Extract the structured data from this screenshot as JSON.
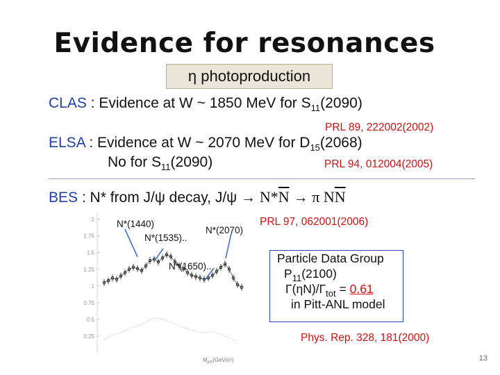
{
  "title": "Evidence for resonances",
  "subtitle": "η photoproduction",
  "clas": {
    "name": "CLAS",
    "text": " : Evidence at W ~ 1850 MeV for S",
    "sub": "11",
    "tail": "(2090)",
    "ref": "PRL 89, 222002(2002)"
  },
  "elsa": {
    "name": "ELSA",
    "text": " : Evidence at W ~ 2070 MeV for D",
    "sub": "15",
    "tail": "(2068)",
    "line2_text": "No for S",
    "line2_sub": "11",
    "line2_tail": "(2090)",
    "ref": "PRL 94, 012004(2005)"
  },
  "bes": {
    "name": "BES",
    "text": "  : N* from J/ψ decay, J/ψ ",
    "arrow1": "→",
    "nstar": "N*",
    "nbar": "N",
    "arrow2": "→",
    "pi": "π ",
    "nn_n": "N",
    "nn_nbar": "N",
    "ref": "PRL 97, 062001(2006)"
  },
  "plot": {
    "labels": [
      "N*(1440)",
      "N*(1535)..",
      "N*(2070)",
      "N*(1650).."
    ],
    "xlabel": "M",
    "xlabel_sub": "pπ",
    "xlabel_tail": "(GeV/c²)",
    "yticks": [
      "2",
      "1.75",
      "1.5",
      "1.25",
      "1",
      "0.75",
      "0.5",
      "0.25"
    ],
    "points": [
      [
        1.2,
        1.05
      ],
      [
        1.23,
        1.08
      ],
      [
        1.26,
        1.12
      ],
      [
        1.29,
        1.1
      ],
      [
        1.32,
        1.15
      ],
      [
        1.35,
        1.2
      ],
      [
        1.38,
        1.25
      ],
      [
        1.41,
        1.28
      ],
      [
        1.44,
        1.26
      ],
      [
        1.47,
        1.23
      ],
      [
        1.5,
        1.3
      ],
      [
        1.53,
        1.38
      ],
      [
        1.56,
        1.4
      ],
      [
        1.59,
        1.36
      ],
      [
        1.62,
        1.42
      ],
      [
        1.65,
        1.47
      ],
      [
        1.68,
        1.44
      ],
      [
        1.71,
        1.36
      ],
      [
        1.74,
        1.3
      ],
      [
        1.77,
        1.26
      ],
      [
        1.8,
        1.2
      ],
      [
        1.83,
        1.16
      ],
      [
        1.86,
        1.14
      ],
      [
        1.89,
        1.12
      ],
      [
        1.92,
        1.1
      ],
      [
        1.95,
        1.12
      ],
      [
        1.98,
        1.16
      ],
      [
        2.01,
        1.22
      ],
      [
        2.04,
        1.28
      ],
      [
        2.07,
        1.33
      ],
      [
        2.1,
        1.25
      ],
      [
        2.13,
        1.12
      ],
      [
        2.16,
        1.02
      ],
      [
        2.19,
        0.98
      ]
    ],
    "hist_low": [
      [
        1.2,
        0.2
      ],
      [
        1.26,
        0.26
      ],
      [
        1.32,
        0.3
      ],
      [
        1.38,
        0.36
      ],
      [
        1.44,
        0.4
      ],
      [
        1.5,
        0.46
      ],
      [
        1.56,
        0.52
      ],
      [
        1.62,
        0.5
      ],
      [
        1.68,
        0.46
      ],
      [
        1.74,
        0.4
      ],
      [
        1.8,
        0.36
      ],
      [
        1.86,
        0.32
      ],
      [
        1.92,
        0.3
      ],
      [
        1.98,
        0.32
      ],
      [
        2.04,
        0.28
      ],
      [
        2.1,
        0.22
      ],
      [
        2.16,
        0.18
      ]
    ]
  },
  "pdg": {
    "line1": "Particle Data Group",
    "line2": "P",
    "line2_sub": "11",
    "line2_tail": "(2100)",
    "line3_pre": "Γ(ηN)/Γ",
    "line3_sub": "tot",
    "line3_eq": " = ",
    "line3_val": "0.61",
    "line4": "in Pitt-ANL model"
  },
  "physrep": "Phys. Rep. 328, 181(2000)",
  "page_number": "13",
  "colors": {
    "blue": "#1f3fa4",
    "red": "#cc1010",
    "box_fill": "#e9e5d9"
  }
}
